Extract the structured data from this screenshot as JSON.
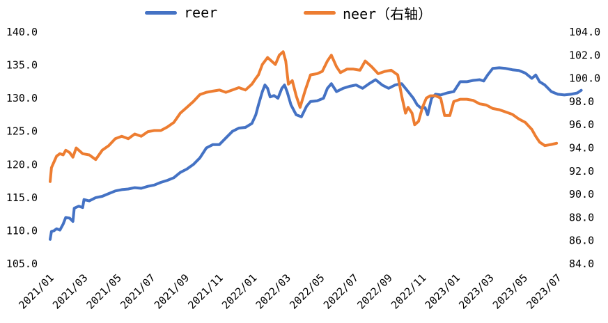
{
  "chart_data": {
    "type": "line",
    "title": "",
    "colors": {
      "reer": "#4472C4",
      "neer": "#ED7D31"
    },
    "legend": [
      {
        "key": "reer",
        "label": "reer"
      },
      {
        "key": "neer",
        "label": "neer（右轴）"
      }
    ],
    "x_tick_labels": [
      "2021/01",
      "2021/03",
      "2021/05",
      "2021/07",
      "2021/09",
      "2021/11",
      "2022/01",
      "2022/03",
      "2022/05",
      "2022/07",
      "2022/09",
      "2022/11",
      "2023/01",
      "2023/03",
      "2023/05",
      "2023/07"
    ],
    "y_left": {
      "min": 105,
      "max": 140,
      "ticks": [
        "105.0",
        "110.0",
        "115.0",
        "120.0",
        "125.0",
        "130.0",
        "135.0",
        "140.0"
      ]
    },
    "y_right": {
      "min": 84,
      "max": 104,
      "ticks": [
        "84.0",
        "86.0",
        "88.0",
        "90.0",
        "92.0",
        "94.0",
        "96.0",
        "98.0",
        "100.0",
        "102.0",
        "104.0"
      ]
    },
    "series": [
      {
        "name": "reer",
        "axis": "left",
        "points": [
          [
            0,
            108.7
          ],
          [
            0.1,
            109.9
          ],
          [
            0.3,
            110.0
          ],
          [
            0.5,
            110.3
          ],
          [
            0.75,
            110.1
          ],
          [
            1.0,
            111.0
          ],
          [
            1.2,
            112.0
          ],
          [
            1.5,
            111.9
          ],
          [
            1.75,
            111.4
          ],
          [
            1.85,
            113.4
          ],
          [
            2.2,
            113.7
          ],
          [
            2.5,
            113.5
          ],
          [
            2.6,
            114.7
          ],
          [
            3.0,
            114.5
          ],
          [
            3.3,
            114.8
          ],
          [
            3.5,
            115.0
          ],
          [
            4.0,
            115.2
          ],
          [
            4.5,
            115.6
          ],
          [
            5.0,
            116.0
          ],
          [
            5.5,
            116.2
          ],
          [
            6.0,
            116.3
          ],
          [
            6.5,
            116.5
          ],
          [
            7.0,
            116.4
          ],
          [
            7.5,
            116.7
          ],
          [
            8.0,
            116.9
          ],
          [
            8.5,
            117.3
          ],
          [
            9.0,
            117.6
          ],
          [
            9.5,
            118.0
          ],
          [
            10.0,
            118.8
          ],
          [
            10.5,
            119.3
          ],
          [
            11.0,
            120.0
          ],
          [
            11.5,
            121.0
          ],
          [
            12.0,
            122.5
          ],
          [
            12.5,
            123.0
          ],
          [
            13.0,
            123.0
          ],
          [
            13.5,
            124.0
          ],
          [
            14.0,
            125.0
          ],
          [
            14.5,
            125.5
          ],
          [
            15.0,
            125.6
          ],
          [
            15.5,
            126.2
          ],
          [
            15.8,
            127.5
          ],
          [
            16.0,
            129.0
          ],
          [
            16.3,
            131.0
          ],
          [
            16.5,
            132.0
          ],
          [
            16.7,
            131.5
          ],
          [
            16.9,
            130.2
          ],
          [
            17.2,
            130.4
          ],
          [
            17.5,
            130.0
          ],
          [
            17.8,
            131.5
          ],
          [
            18.0,
            132.0
          ],
          [
            18.2,
            131.0
          ],
          [
            18.5,
            129.0
          ],
          [
            18.9,
            127.5
          ],
          [
            19.3,
            127.2
          ],
          [
            19.7,
            128.8
          ],
          [
            20.0,
            129.5
          ],
          [
            20.5,
            129.6
          ],
          [
            21.0,
            130.0
          ],
          [
            21.3,
            131.5
          ],
          [
            21.6,
            132.2
          ],
          [
            22.0,
            131.0
          ],
          [
            22.5,
            131.5
          ],
          [
            23.0,
            131.8
          ],
          [
            23.5,
            132.0
          ],
          [
            24.0,
            131.5
          ],
          [
            24.5,
            132.2
          ],
          [
            25.0,
            132.8
          ],
          [
            25.5,
            132.0
          ],
          [
            26.0,
            131.5
          ],
          [
            26.5,
            132.0
          ],
          [
            27.0,
            132.2
          ],
          [
            27.5,
            131.0
          ],
          [
            27.9,
            130.0
          ],
          [
            28.2,
            129.0
          ],
          [
            28.5,
            128.5
          ],
          [
            28.8,
            128.6
          ],
          [
            29.0,
            127.5
          ],
          [
            29.3,
            130.0
          ],
          [
            29.6,
            130.6
          ],
          [
            30.0,
            130.5
          ],
          [
            30.5,
            130.8
          ],
          [
            31.0,
            131.0
          ],
          [
            31.5,
            132.5
          ],
          [
            32.0,
            132.5
          ],
          [
            32.5,
            132.7
          ],
          [
            33.0,
            132.8
          ],
          [
            33.3,
            132.6
          ],
          [
            33.6,
            133.5
          ],
          [
            34.0,
            134.5
          ],
          [
            34.5,
            134.6
          ],
          [
            35.0,
            134.5
          ],
          [
            35.5,
            134.3
          ],
          [
            36.0,
            134.2
          ],
          [
            36.5,
            133.8
          ],
          [
            37.0,
            133.0
          ],
          [
            37.3,
            133.5
          ],
          [
            37.6,
            132.5
          ],
          [
            38.0,
            132.0
          ],
          [
            38.5,
            131.0
          ],
          [
            39.0,
            130.6
          ],
          [
            39.5,
            130.5
          ],
          [
            40.0,
            130.6
          ],
          [
            40.5,
            130.8
          ],
          [
            40.8,
            131.2
          ]
        ]
      },
      {
        "name": "neer",
        "axis": "right",
        "points": [
          [
            0,
            91.1
          ],
          [
            0.1,
            92.3
          ],
          [
            0.3,
            92.8
          ],
          [
            0.5,
            93.3
          ],
          [
            0.75,
            93.5
          ],
          [
            1.0,
            93.4
          ],
          [
            1.2,
            93.8
          ],
          [
            1.5,
            93.6
          ],
          [
            1.75,
            93.2
          ],
          [
            2.0,
            94.0
          ],
          [
            2.5,
            93.5
          ],
          [
            3.0,
            93.4
          ],
          [
            3.5,
            93.0
          ],
          [
            4.0,
            93.8
          ],
          [
            4.5,
            94.2
          ],
          [
            5.0,
            94.8
          ],
          [
            5.5,
            95.0
          ],
          [
            6.0,
            94.8
          ],
          [
            6.5,
            95.2
          ],
          [
            7.0,
            95.0
          ],
          [
            7.5,
            95.4
          ],
          [
            8.0,
            95.5
          ],
          [
            8.5,
            95.5
          ],
          [
            9.0,
            95.8
          ],
          [
            9.5,
            96.2
          ],
          [
            10.0,
            97.0
          ],
          [
            10.5,
            97.5
          ],
          [
            11.0,
            98.0
          ],
          [
            11.5,
            98.6
          ],
          [
            12.0,
            98.8
          ],
          [
            12.5,
            98.9
          ],
          [
            13.0,
            99.0
          ],
          [
            13.5,
            98.8
          ],
          [
            14.0,
            99.0
          ],
          [
            14.5,
            99.2
          ],
          [
            15.0,
            99.0
          ],
          [
            15.5,
            99.5
          ],
          [
            15.8,
            100.0
          ],
          [
            16.0,
            100.3
          ],
          [
            16.3,
            101.2
          ],
          [
            16.7,
            101.8
          ],
          [
            17.0,
            101.5
          ],
          [
            17.3,
            101.2
          ],
          [
            17.6,
            102.0
          ],
          [
            17.9,
            102.3
          ],
          [
            18.1,
            101.5
          ],
          [
            18.3,
            99.5
          ],
          [
            18.6,
            99.8
          ],
          [
            18.9,
            98.5
          ],
          [
            19.2,
            97.5
          ],
          [
            19.6,
            99.0
          ],
          [
            20.0,
            100.3
          ],
          [
            20.5,
            100.4
          ],
          [
            20.9,
            100.6
          ],
          [
            21.3,
            101.5
          ],
          [
            21.6,
            102.0
          ],
          [
            22.0,
            101.0
          ],
          [
            22.3,
            100.5
          ],
          [
            22.8,
            100.8
          ],
          [
            23.3,
            100.8
          ],
          [
            23.8,
            100.7
          ],
          [
            24.2,
            101.5
          ],
          [
            24.7,
            101.0
          ],
          [
            25.2,
            100.4
          ],
          [
            25.7,
            100.6
          ],
          [
            26.2,
            100.7
          ],
          [
            26.7,
            100.3
          ],
          [
            27.0,
            98.5
          ],
          [
            27.3,
            97.0
          ],
          [
            27.5,
            97.5
          ],
          [
            27.8,
            97.0
          ],
          [
            28.0,
            96.0
          ],
          [
            28.3,
            96.3
          ],
          [
            28.6,
            97.5
          ],
          [
            28.9,
            98.3
          ],
          [
            29.2,
            98.5
          ],
          [
            29.6,
            98.5
          ],
          [
            30.0,
            98.3
          ],
          [
            30.3,
            96.8
          ],
          [
            30.7,
            96.8
          ],
          [
            31.0,
            98.0
          ],
          [
            31.5,
            98.2
          ],
          [
            32.0,
            98.2
          ],
          [
            32.5,
            98.1
          ],
          [
            33.0,
            97.8
          ],
          [
            33.5,
            97.7
          ],
          [
            34.0,
            97.4
          ],
          [
            34.5,
            97.3
          ],
          [
            35.0,
            97.1
          ],
          [
            35.5,
            96.9
          ],
          [
            36.0,
            96.5
          ],
          [
            36.5,
            96.2
          ],
          [
            37.0,
            95.6
          ],
          [
            37.3,
            95.0
          ],
          [
            37.6,
            94.5
          ],
          [
            38.0,
            94.2
          ],
          [
            38.5,
            94.3
          ],
          [
            38.9,
            94.4
          ]
        ]
      }
    ]
  }
}
